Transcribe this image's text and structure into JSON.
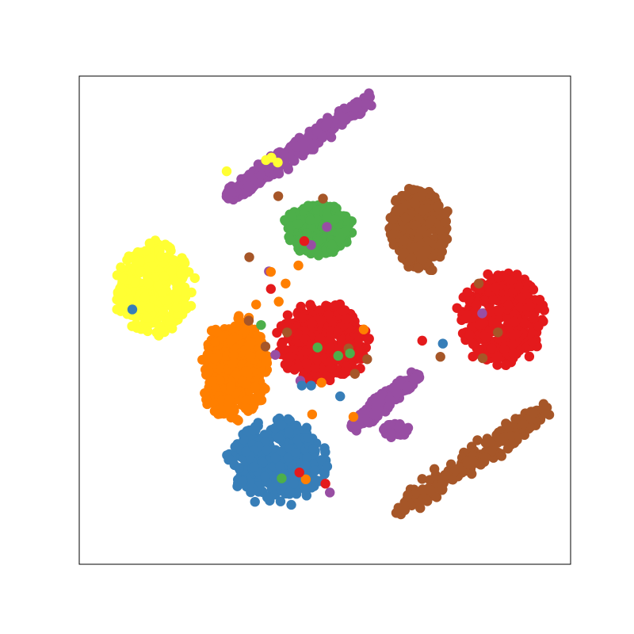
{
  "chart_data": {
    "type": "scatter",
    "title": "",
    "xlabel": "",
    "ylabel": "",
    "xlim": [
      0,
      100
    ],
    "ylim": [
      0,
      100
    ],
    "grid": false,
    "legend": "none",
    "series": [
      {
        "color": "#984ea3",
        "clusters": [
          {
            "shape": "band",
            "from": [
              30,
              75
            ],
            "to": [
              59.7,
              95.7
            ],
            "width": 2.6,
            "n": 330
          },
          {
            "shape": "band",
            "from": [
              55.5,
              28
            ],
            "to": [
              69,
              39
            ],
            "width": 2.2,
            "n": 220
          },
          {
            "shape": "blob",
            "cx": 64.5,
            "cy": 27.5,
            "rx": 2.8,
            "ry": 1.6,
            "angle": 0,
            "n": 50
          }
        ]
      },
      {
        "color": "#4daf4a",
        "clusters": [
          {
            "shape": "blob",
            "cx": 48.6,
            "cy": 68.7,
            "rx": 7.4,
            "ry": 5.6,
            "angle": 0,
            "n": 360
          }
        ]
      },
      {
        "color": "#a65628",
        "clusters": [
          {
            "shape": "blob",
            "cx": 69.3,
            "cy": 68.8,
            "rx": 6.5,
            "ry": 9.7,
            "angle": 0,
            "n": 340
          },
          {
            "shape": "band",
            "from": [
              64,
              10
            ],
            "to": [
              95.6,
              32.3
            ],
            "width": 3.2,
            "n": 230
          }
        ]
      },
      {
        "color": "#ffff33",
        "clusters": [
          {
            "shape": "blob",
            "cx": 15.4,
            "cy": 56.5,
            "rx": 8.6,
            "ry": 10.2,
            "angle": 0,
            "n": 370
          }
        ]
      },
      {
        "color": "#e41a1c",
        "clusters": [
          {
            "shape": "blob",
            "cx": 49.4,
            "cy": 45.3,
            "rx": 10.2,
            "ry": 8.8,
            "angle": 0,
            "n": 430
          },
          {
            "shape": "blob",
            "cx": 86,
            "cy": 50.4,
            "rx": 9.7,
            "ry": 10.4,
            "angle": 0,
            "n": 360
          }
        ]
      },
      {
        "color": "#ff7f00",
        "clusters": [
          {
            "shape": "blob",
            "cx": 31.5,
            "cy": 40.2,
            "rx": 7.7,
            "ry": 11.4,
            "angle": 0,
            "n": 420
          }
        ]
      },
      {
        "color": "#377eb8",
        "clusters": [
          {
            "shape": "blob",
            "cx": 40.3,
            "cy": 21.1,
            "rx": 10.9,
            "ry": 9.4,
            "angle": 0,
            "n": 380
          }
        ]
      }
    ],
    "outliers": [
      {
        "color": "#a65628",
        "x": [
          40.5,
          49.6,
          34.5,
          42.3,
          34.6,
          54.8,
          37.9,
          58.6,
          56.1,
          85.2,
          73.5,
          81.3,
          82.1,
          63.8
        ],
        "y": [
          75.4,
          74.9,
          49.9,
          47.5,
          62.9,
          44.2,
          44.6,
          42.0,
          39.0,
          47.5,
          42.5,
          57.5,
          42.2,
          70.7
        ]
      },
      {
        "color": "#984ea3",
        "x": [
          45.0,
          38.6,
          51.0,
          47.2,
          50.4,
          39.9,
          82.0
        ],
        "y": [
          37.6,
          60.0,
          14.7,
          65.4,
          69.1,
          42.9,
          51.4
        ]
      },
      {
        "color": "#ff7f00",
        "x": [
          39.0,
          42.0,
          40.6,
          57.9,
          49.3,
          47.4,
          55.8,
          46.1,
          36.0,
          44.6
        ],
        "y": [
          59.9,
          57.5,
          53.8,
          48.1,
          37.2,
          30.7,
          30.2,
          17.4,
          53.2,
          61.2
        ]
      },
      {
        "color": "#4daf4a",
        "x": [
          37.0,
          48.5,
          52.7,
          41.2,
          55.1,
          46.4
        ],
        "y": [
          49.0,
          44.4,
          42.7,
          17.6,
          43.2,
          67.8
        ]
      },
      {
        "color": "#377eb8",
        "x": [
          10.8,
          47.2,
          45.3,
          74.0,
          53.1
        ],
        "y": [
          52.2,
          36.6,
          36.6,
          45.2,
          34.4
        ]
      },
      {
        "color": "#e41a1c",
        "x": [
          50.1,
          44.8,
          45.8,
          39.0,
          69.8
        ],
        "y": [
          16.5,
          18.8,
          66.2,
          56.4,
          45.8
        ]
      },
      {
        "color": "#ffff33",
        "x": [
          39.1,
          40.4,
          30.0,
          38.0
        ],
        "y": [
          83.3,
          82.3,
          80.5,
          82.8
        ]
      }
    ]
  }
}
